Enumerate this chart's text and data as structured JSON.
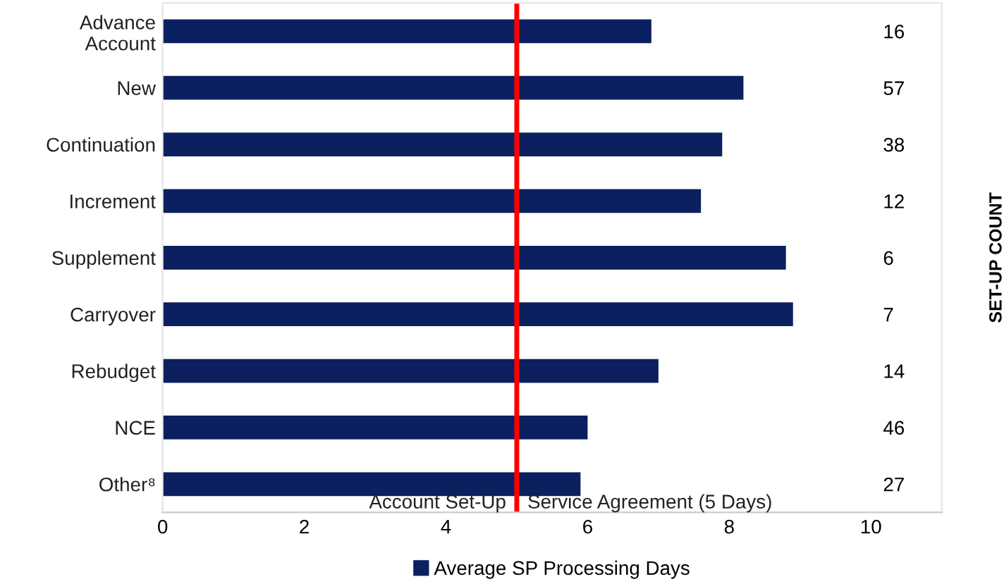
{
  "chart_data": {
    "type": "bar",
    "orientation": "horizontal",
    "categories": [
      "Advance\nAccount",
      "New",
      "Continuation",
      "Increment",
      "Supplement",
      "Carryover",
      "Rebudget",
      "NCE",
      "Other⁸"
    ],
    "series": [
      {
        "name": "Average SP Processing Days",
        "color": "#0c1f5e",
        "values": [
          6.9,
          8.2,
          7.9,
          7.6,
          8.8,
          8.9,
          7.0,
          6.0,
          5.9
        ]
      }
    ],
    "y2_categories": [
      "16",
      "57",
      "38",
      "12",
      "6",
      "7",
      "14",
      "46",
      "27"
    ],
    "y2label": "SET-UP COUNT",
    "xlim": [
      0,
      11
    ],
    "xticks": [
      0,
      2,
      4,
      6,
      8,
      10
    ],
    "ref_lines": [
      {
        "axis": "x",
        "value": 5,
        "color": "#ff0000"
      }
    ],
    "annotations": [
      "Account Set-Up",
      "Service Agreement (5 Days)"
    ],
    "grid": false,
    "legend": "bottom"
  }
}
